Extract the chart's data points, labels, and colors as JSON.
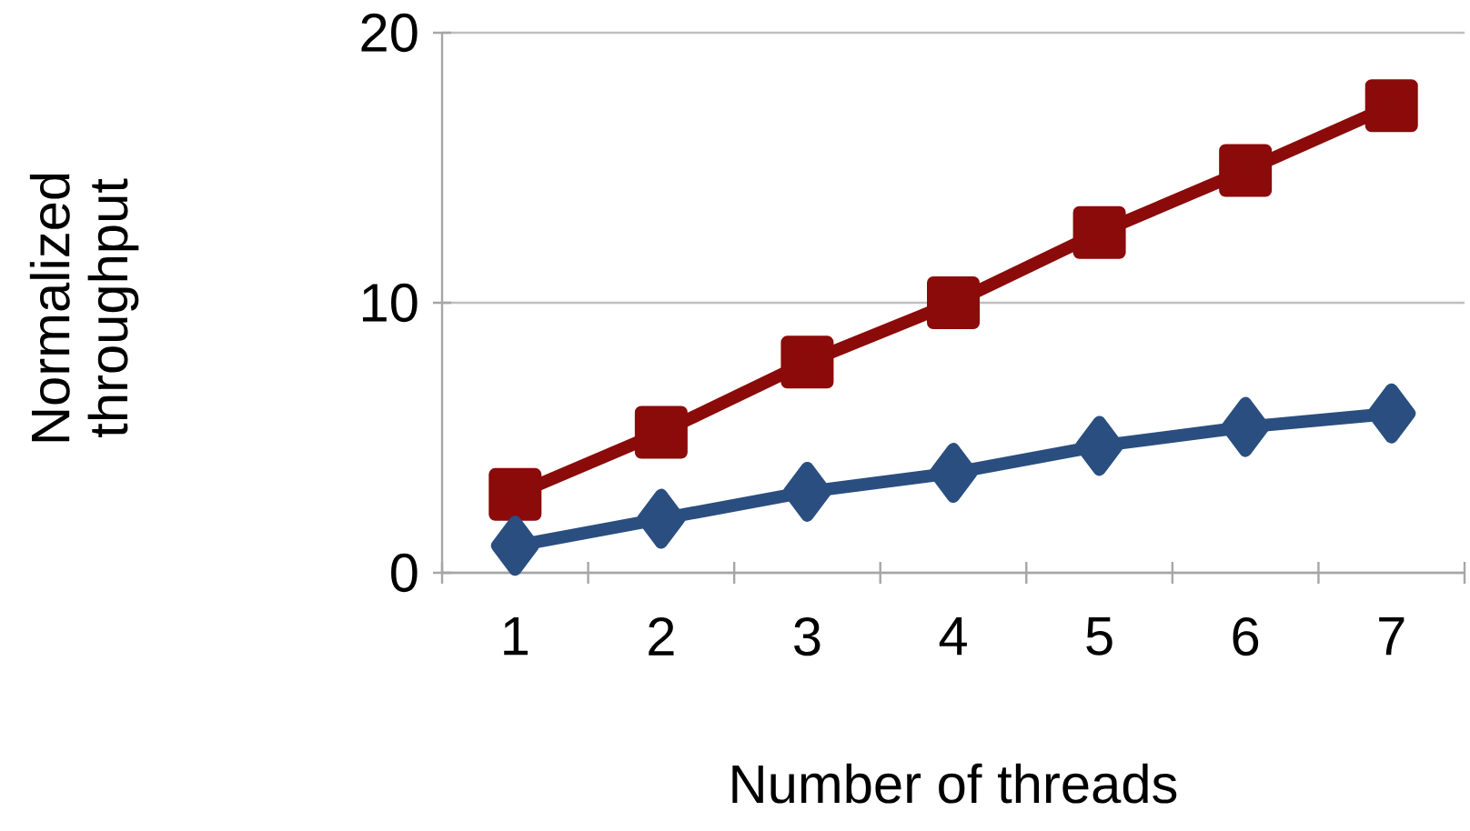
{
  "chart_data": {
    "type": "line",
    "xlabel": "Number of threads",
    "ylabel": "Normalized throughput",
    "categories": [
      "1",
      "2",
      "3",
      "4",
      "5",
      "6",
      "7"
    ],
    "series": [
      {
        "color": "#8b0a0a",
        "marker": "square",
        "values": [
          2.9,
          5.2,
          7.8,
          10.0,
          12.6,
          14.9,
          17.3
        ]
      },
      {
        "color": "#2a4e7f",
        "marker": "diamond",
        "values": [
          1.0,
          2.0,
          3.0,
          3.7,
          4.7,
          5.4,
          5.9
        ]
      }
    ],
    "ylim": [
      0,
      20
    ],
    "yticks": [
      0,
      10,
      20
    ],
    "grid": "y",
    "line_style": "solid"
  }
}
